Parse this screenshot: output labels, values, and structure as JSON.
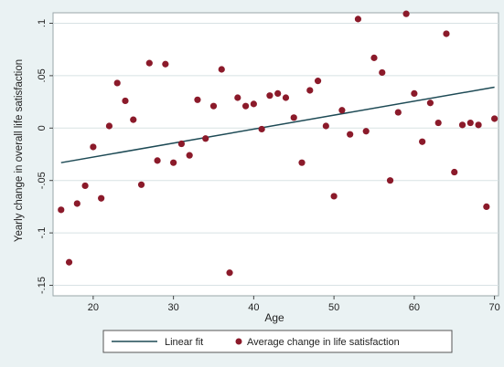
{
  "chart_data": {
    "type": "scatter",
    "title": "",
    "xlabel": "Age",
    "ylabel": "Yearly change in overall life satisfaction",
    "xlim": [
      15,
      70.5
    ],
    "ylim": [
      -0.16,
      0.11
    ],
    "x_ticks": [
      20,
      30,
      40,
      50,
      60,
      70
    ],
    "x_tick_labels": [
      "20",
      "30",
      "40",
      "50",
      "60",
      "70"
    ],
    "y_ticks": [
      -0.15,
      -0.1,
      -0.05,
      0,
      0.05,
      0.1
    ],
    "y_tick_labels": [
      "-.15",
      "-.1",
      "-.05",
      "0",
      ".05",
      ".1"
    ],
    "grid": true,
    "legend_position": "bottom",
    "colors": {
      "background": "#eaf2f3",
      "plot_area": "#ffffff",
      "points": "#8b1a2a",
      "fit_line": "#1d4a55",
      "grid": "#d8e2e4"
    },
    "series": [
      {
        "name": "Average change in life satisfaction",
        "kind": "scatter",
        "points": [
          [
            16,
            -0.078
          ],
          [
            17,
            -0.128
          ],
          [
            18,
            -0.072
          ],
          [
            19,
            -0.055
          ],
          [
            20,
            -0.018
          ],
          [
            21,
            -0.067
          ],
          [
            22,
            0.002
          ],
          [
            23,
            0.043
          ],
          [
            24,
            0.026
          ],
          [
            25,
            0.008
          ],
          [
            26,
            -0.054
          ],
          [
            27,
            0.062
          ],
          [
            28,
            -0.031
          ],
          [
            29,
            0.061
          ],
          [
            30,
            -0.033
          ],
          [
            31,
            -0.015
          ],
          [
            32,
            -0.026
          ],
          [
            33,
            0.027
          ],
          [
            34,
            -0.01
          ],
          [
            35,
            0.021
          ],
          [
            36,
            0.056
          ],
          [
            37,
            -0.138
          ],
          [
            38,
            0.029
          ],
          [
            39,
            0.021
          ],
          [
            40,
            0.023
          ],
          [
            41,
            -0.001
          ],
          [
            42,
            0.031
          ],
          [
            43,
            0.033
          ],
          [
            44,
            0.029
          ],
          [
            45,
            0.01
          ],
          [
            46,
            -0.033
          ],
          [
            47,
            0.036
          ],
          [
            48,
            0.045
          ],
          [
            49,
            0.002
          ],
          [
            50,
            -0.065
          ],
          [
            51,
            0.017
          ],
          [
            52,
            -0.006
          ],
          [
            53,
            0.104
          ],
          [
            54,
            -0.003
          ],
          [
            55,
            0.067
          ],
          [
            56,
            0.053
          ],
          [
            57,
            -0.05
          ],
          [
            58,
            0.015
          ],
          [
            59,
            0.109
          ],
          [
            60,
            0.033
          ],
          [
            61,
            -0.013
          ],
          [
            62,
            0.024
          ],
          [
            63,
            0.005
          ],
          [
            64,
            0.09
          ],
          [
            65,
            -0.042
          ],
          [
            66,
            0.003
          ],
          [
            67,
            0.005
          ],
          [
            68,
            0.003
          ],
          [
            69,
            -0.075
          ],
          [
            70,
            0.009
          ]
        ]
      },
      {
        "name": "Linear fit",
        "kind": "line",
        "points": [
          [
            16,
            -0.033
          ],
          [
            70,
            0.039
          ]
        ]
      }
    ],
    "legend": [
      "Linear fit",
      "Average change in life satisfaction"
    ]
  }
}
